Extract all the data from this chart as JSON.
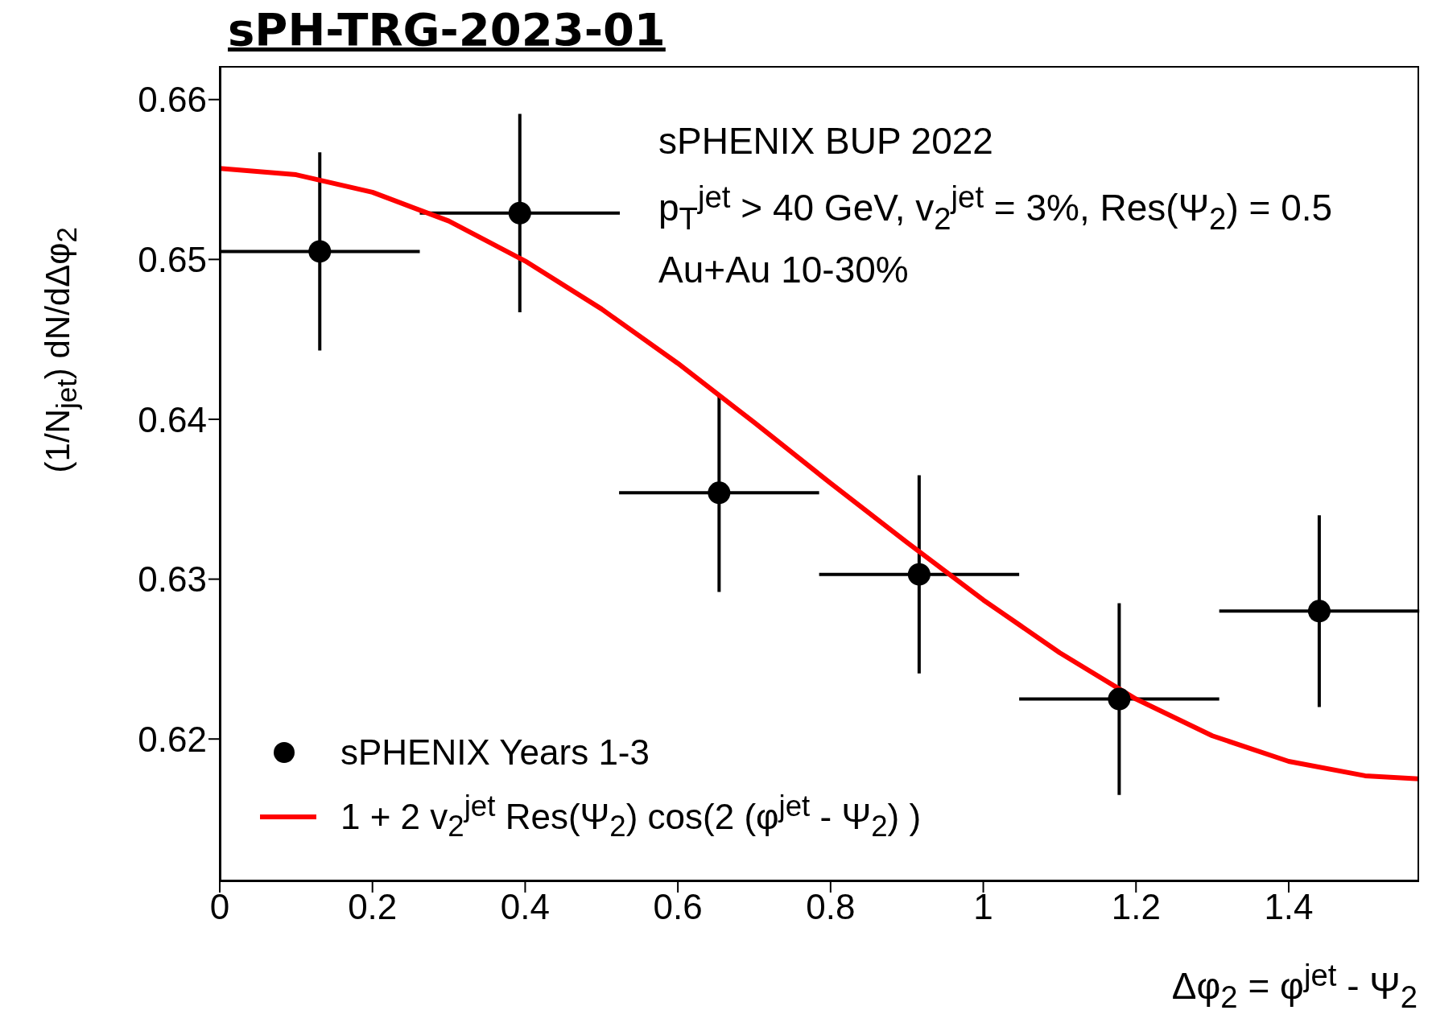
{
  "chart_data": {
    "type": "scatter",
    "title": "sPH-TRG-2023-01",
    "xlabel": "Δφ$_{2}$ = φ$^{jet}$ - Ψ$_{2}$",
    "ylabel": "(1/N$_{jet}$) dN/dΔφ$_{2}$",
    "annotations": [
      "sPHENIX BUP 2022",
      "p$_{T}$$^{jet}$ > 40 GeV, v$_{2}$$^{jet}$ = 3%, Res(Ψ$_{2}$) = 0.5",
      "Au+Au 10-30%"
    ],
    "x": [
      0.131,
      0.393,
      0.654,
      0.916,
      1.178,
      1.44
    ],
    "series": [
      {
        "name": "sPHENIX Years 1-3",
        "color": "#000000",
        "marker": "circle",
        "values": [
          0.6505,
          0.6529,
          0.6354,
          0.6303,
          0.6225,
          0.628
        ],
        "errors": [
          0.0062,
          0.0062,
          0.0062,
          0.0062,
          0.006,
          0.006
        ],
        "xerrors": [
          0.131,
          0.131,
          0.131,
          0.131,
          0.131,
          0.131
        ]
      },
      {
        "name": "1 + 2 v$_{2}$$^{jet}$ Res(Ψ$_{2}$) cos(2 (φ$^{jet}$ - Ψ$_{2}$) )",
        "type": "line",
        "color": "#ff0000",
        "line_style": "solid",
        "marker": "none",
        "x": [
          0,
          0.1,
          0.2,
          0.3,
          0.4,
          0.5,
          0.6,
          0.7,
          0.8,
          0.9,
          1.0,
          1.1,
          1.2,
          1.3,
          1.4,
          1.5,
          1.5708
        ],
        "values": [
          0.6557,
          0.6553,
          0.6542,
          0.6524,
          0.6499,
          0.6469,
          0.6435,
          0.6398,
          0.636,
          0.6323,
          0.6287,
          0.6254,
          0.6225,
          0.6202,
          0.6186,
          0.6177,
          0.6175
        ]
      }
    ],
    "xlim": [
      0,
      1.5708
    ],
    "xticks": [
      0,
      0.2,
      0.4,
      0.6,
      0.8,
      1,
      1.2,
      1.4
    ],
    "ylim": [
      0.6111,
      0.6621
    ],
    "yticks": [
      0.62,
      0.63,
      0.64,
      0.65,
      0.66
    ],
    "legend": "bottom left"
  }
}
